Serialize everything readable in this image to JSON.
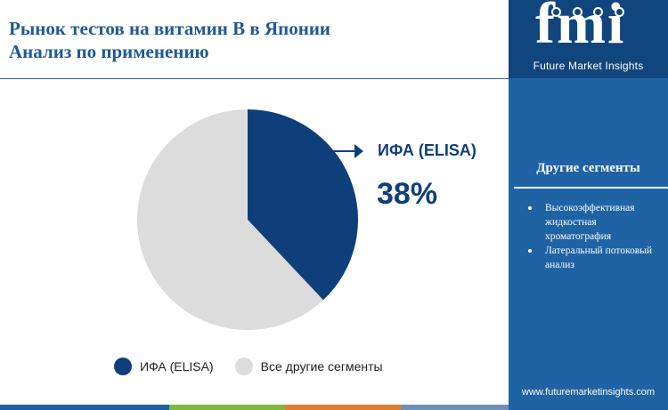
{
  "header": {
    "title_line1": "Рынок тестов на витамин В в Японии",
    "title_line2": "Анализ по применению"
  },
  "brand": {
    "logo_text": "fmi",
    "logo_subtitle": "Future Market Insights",
    "url": "www.futuremarketinsights.com"
  },
  "sidebar": {
    "segments_title": "Другие сегменты",
    "segments": [
      "Высокоэффективная жидкостная хроматография",
      "Латеральный потоковый анализ"
    ]
  },
  "callout": {
    "label": "ИФА (ELISA)",
    "value": "38%"
  },
  "chart_data": {
    "type": "pie",
    "categories": [
      "ИФА (ELISA)",
      "Все другие сегменты"
    ],
    "values": [
      38,
      62
    ],
    "colors": [
      "#0f3f7a",
      "#dcdcdc"
    ],
    "start_angle_deg": 0,
    "direction": "clockwise",
    "legend_position": "bottom"
  },
  "colors": {
    "title": "#1f5a93",
    "sidebar": "#1f63a5",
    "logo_bg": "#11457d",
    "accent_bars": [
      "#1f63a5",
      "#7fb93c",
      "#e07b2f",
      "#6b8fb5"
    ]
  }
}
